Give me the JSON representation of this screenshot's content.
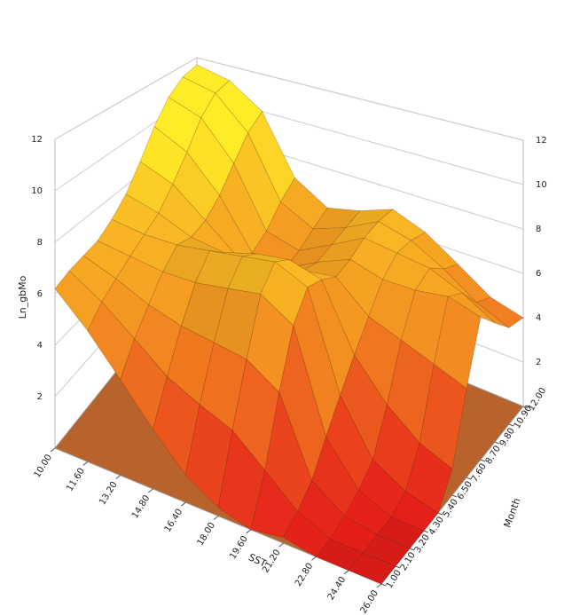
{
  "chart_data": {
    "type": "surface",
    "x_label": "SST",
    "y_label": "Month",
    "z_label": "Ln_gbMo",
    "x": [
      10,
      11.6,
      13.2,
      14.8,
      16.4,
      18,
      19.6,
      21.2,
      22.8,
      24.4,
      26
    ],
    "y": [
      1,
      2.1,
      3.2,
      4.3,
      5.4,
      6.5,
      7.6,
      8.7,
      9.8,
      10.9,
      12
    ],
    "z": [
      [
        6.2,
        5.0,
        3.6,
        2.2,
        1.0,
        0.3,
        0.0,
        0.2,
        0.0,
        0.0,
        0.0
      ],
      [
        6.4,
        5.6,
        4.6,
        3.6,
        3.0,
        2.5,
        1.5,
        0.5,
        0.0,
        0.0,
        0.0
      ],
      [
        6.5,
        6.0,
        5.4,
        5.0,
        4.8,
        4.6,
        3.8,
        1.0,
        0.2,
        0.0,
        0.0
      ],
      [
        6.6,
        6.4,
        6.2,
        6.2,
        6.4,
        6.6,
        5.8,
        2.0,
        0.5,
        0.0,
        0.0
      ],
      [
        7.0,
        6.8,
        6.8,
        7.0,
        7.2,
        7.4,
        6.8,
        3.0,
        1.0,
        0.3,
        0.0
      ],
      [
        7.6,
        7.2,
        6.6,
        6.4,
        6.8,
        7.0,
        6.6,
        4.0,
        2.5,
        1.5,
        1.0
      ],
      [
        8.6,
        8.0,
        6.8,
        5.6,
        5.6,
        6.0,
        6.2,
        5.0,
        4.5,
        4.0,
        3.5
      ],
      [
        9.8,
        9.0,
        7.4,
        5.2,
        5.0,
        5.8,
        6.4,
        6.0,
        6.0,
        6.2,
        5.8
      ],
      [
        10.8,
        10.2,
        8.4,
        5.6,
        5.2,
        6.0,
        6.8,
        6.6,
        6.4,
        5.8,
        5.0
      ],
      [
        11.4,
        11.0,
        9.4,
        6.4,
        5.6,
        6.2,
        7.0,
        6.6,
        5.8,
        4.8,
        4.2
      ],
      [
        11.6,
        11.2,
        10.0,
        7.0,
        6.0,
        6.4,
        7.0,
        6.4,
        5.4,
        4.4,
        4.0
      ]
    ],
    "xlim": [
      10,
      26
    ],
    "ylim": [
      1,
      12
    ],
    "zlim": [
      0,
      12
    ],
    "xticks": [
      {
        "value": 10,
        "label": "10.00"
      },
      {
        "value": 11.6,
        "label": "11.60"
      },
      {
        "value": 13.2,
        "label": "13.20"
      },
      {
        "value": 14.8,
        "label": "14.80"
      },
      {
        "value": 16.4,
        "label": "16.40"
      },
      {
        "value": 18,
        "label": "18.00"
      },
      {
        "value": 19.6,
        "label": "19.60"
      },
      {
        "value": 21.2,
        "label": "21.20"
      },
      {
        "value": 22.8,
        "label": "22.80"
      },
      {
        "value": 24.4,
        "label": "24.40"
      },
      {
        "value": 26,
        "label": "26.00"
      }
    ],
    "yticks": [
      {
        "value": 1,
        "label": "1.00"
      },
      {
        "value": 2.1,
        "label": "2.10"
      },
      {
        "value": 3.2,
        "label": "3.20"
      },
      {
        "value": 4.3,
        "label": "4.30"
      },
      {
        "value": 5.4,
        "label": "5.40"
      },
      {
        "value": 6.5,
        "label": "6.50"
      },
      {
        "value": 7.6,
        "label": "7.60"
      },
      {
        "value": 8.7,
        "label": "8.70"
      },
      {
        "value": 9.8,
        "label": "9.80"
      },
      {
        "value": 10.9,
        "label": "10.90"
      },
      {
        "value": 12,
        "label": "12.00"
      }
    ],
    "zticks": [
      2,
      4,
      6,
      8,
      10,
      12
    ],
    "low_color": "#e41e1a",
    "high_color": "#ffec28",
    "floor_color": "#b8622c"
  }
}
